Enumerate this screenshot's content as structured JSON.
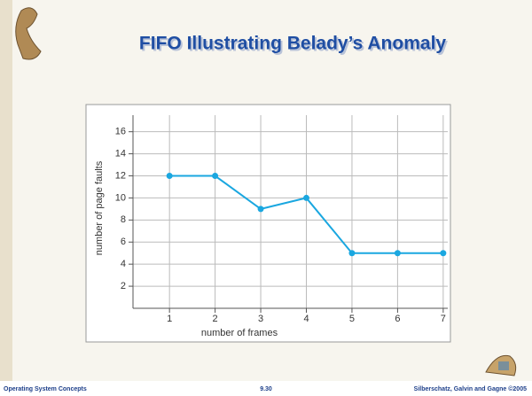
{
  "chart_data": {
    "type": "line",
    "title": "FIFO Illustrating Belady’s Anomaly",
    "x_label": "number of frames",
    "y_label": "number of page faults",
    "x": [
      1,
      2,
      3,
      4,
      5,
      6,
      7
    ],
    "values": [
      12,
      12,
      9,
      10,
      5,
      5,
      5
    ],
    "color": "#1aa7e0",
    "xlim": [
      0.2,
      7.1
    ],
    "ylim": [
      0,
      17.5
    ],
    "xticks": [
      1,
      2,
      3,
      4,
      5,
      6,
      7
    ],
    "yticks": [
      2,
      4,
      6,
      8,
      10,
      12,
      14,
      16
    ],
    "grid": true
  },
  "footer": {
    "left": "Operating System Concepts",
    "center": "9.30",
    "right": "Silberschatz, Galvin and Gagne ©2005"
  }
}
